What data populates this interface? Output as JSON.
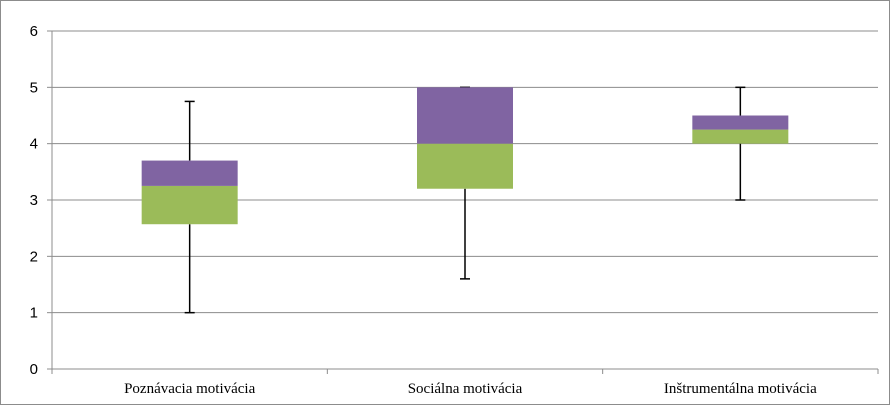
{
  "chart_data": {
    "type": "box",
    "categories": [
      "Poznávacia motivácia",
      "Sociálna motivácia",
      "Inštrumentálna motivácia"
    ],
    "series": [
      {
        "min": [
          1.0,
          1.6,
          3.0
        ],
        "q1": [
          2.57,
          3.2,
          4.0
        ],
        "median": [
          3.25,
          4.0,
          4.25
        ],
        "q3": [
          3.7,
          5.0,
          4.5
        ],
        "max": [
          4.75,
          5.0,
          5.0
        ]
      }
    ],
    "ylim": [
      0,
      6
    ],
    "yticks": [
      0,
      1,
      2,
      3,
      4,
      5,
      6
    ],
    "grid": true,
    "legend": "none",
    "colors": {
      "lower_box": "#9bbb59",
      "upper_box": "#8064a2",
      "whisker": "#000000",
      "gridline": "#8c8c8c",
      "axis": "#8c8c8c"
    }
  }
}
